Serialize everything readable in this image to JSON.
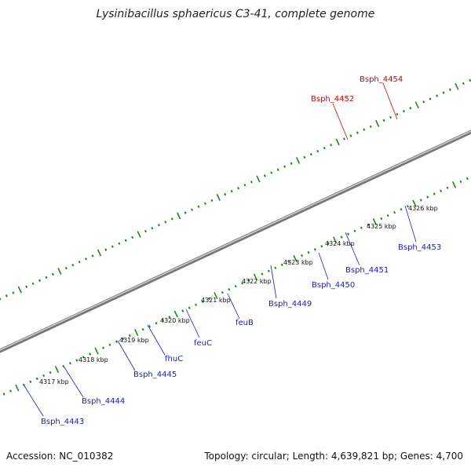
{
  "title": "Lysinibacillus sphaericus C3-41, complete genome",
  "footer": {
    "accession": "Accession: NC_010382",
    "summary": "Topology: circular; Length: 4,639,821 bp; Genes: 4,700"
  },
  "kbp_labels": [
    "4317 kbp",
    "4318 kbp",
    "4319 kbp",
    "4320 kbp",
    "4321 kbp",
    "4322 kbp",
    "4323 kbp",
    "4324 kbp",
    "4325 kbp",
    "4326 kbp"
  ],
  "gene_labels": {
    "bsph_4443": "Bsph_4443",
    "bsph_4444": "Bsph_4444",
    "bsph_4445": "Bsph_4445",
    "fhuC": "fhuC",
    "feuC": "feuC",
    "feuB": "feuB",
    "bsph_4449": "Bsph_4449",
    "bsph_4450": "Bsph_4450",
    "bsph_4451": "Bsph_4451",
    "bsph_4452": "Bsph_4452",
    "bsph_4453": "Bsph_4453",
    "bsph_4454": "Bsph_4454"
  },
  "colors": {
    "cds_default": "#1a1ae6",
    "cds_iron_transport": "#4a4396",
    "cds_hypothetical": "#c0c0c0",
    "cds_red": "#ee1111",
    "cds_orange": "#ff8c00",
    "cds_olive": "#6b8e23",
    "cds_dark_gray": "#666666",
    "backbone": "#8c8c8c",
    "tick_marks": "#1a8a1a",
    "label_blue": "#1a1ad0",
    "label_red": "#d00000"
  }
}
